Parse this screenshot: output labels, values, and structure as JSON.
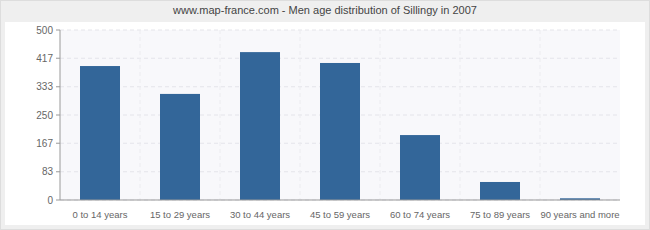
{
  "chart_data": {
    "type": "bar",
    "title": "www.map-france.com - Men age distribution of Sillingy in 2007",
    "categories": [
      "0 to 14 years",
      "15 to 29 years",
      "30 to 44 years",
      "45 to 59 years",
      "60 to 74 years",
      "75 to 89 years",
      "90 years and more"
    ],
    "values": [
      394,
      312,
      435,
      403,
      191,
      53,
      5
    ],
    "color": "#336699",
    "ylim": [
      0,
      500
    ],
    "yticks": [
      0,
      83,
      167,
      250,
      333,
      417,
      500
    ],
    "grid": true
  }
}
